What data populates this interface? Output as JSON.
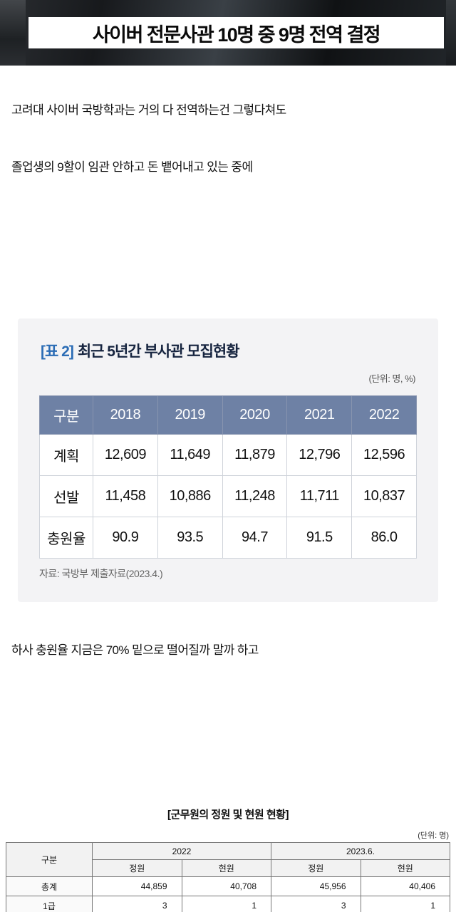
{
  "banner": {
    "headline": "사이버 전문사관 10명 중 9명 전역 결정"
  },
  "commentary": {
    "line1": "고려대 사이버 국방학과는 거의 다 전역하는건 그렇다쳐도",
    "line2": "졸업생의 9할이 임관 안하고 돈 뱉어내고 있는 중에",
    "line3": "하사 충원율 지금은 70% 밑으로 떨어질까 말까 하고"
  },
  "recruit_table": {
    "title_tag": "[표 2]",
    "title": "최근 5년간 부사관 모집현황",
    "unit": "(단위: 명, %)",
    "source": "자료: 국방부 제출자료(2023.4.)",
    "columns": [
      "구분",
      "2018",
      "2019",
      "2020",
      "2021",
      "2022"
    ],
    "rows": [
      {
        "label": "계획",
        "values": [
          "12,609",
          "11,649",
          "11,879",
          "12,796",
          "12,596"
        ]
      },
      {
        "label": "선발",
        "values": [
          "11,458",
          "10,886",
          "11,248",
          "11,711",
          "10,837"
        ]
      },
      {
        "label": "충원율",
        "values": [
          "90.9",
          "93.5",
          "94.7",
          "91.5",
          "86.0"
        ]
      }
    ]
  },
  "civilian_table": {
    "title": "[군무원의 정원 및 현원 현황]",
    "unit": "(단위: 명)",
    "col_group_label": "구분",
    "year_groups": [
      "2022",
      "2023.6."
    ],
    "sub_columns": [
      "정원",
      "현원",
      "정원",
      "현원"
    ],
    "rows": [
      {
        "label": "총계",
        "values": [
          "44,859",
          "40,708",
          "45,956",
          "40,406"
        ]
      },
      {
        "label": "1급",
        "values": [
          "3",
          "1",
          "3",
          "1"
        ]
      }
    ]
  },
  "colors": {
    "table_header_bg": "#6e81a5",
    "panel_bg": "#f3f3f5",
    "title_tag_blue": "#2b6cb5",
    "title_navy": "#16243f"
  }
}
